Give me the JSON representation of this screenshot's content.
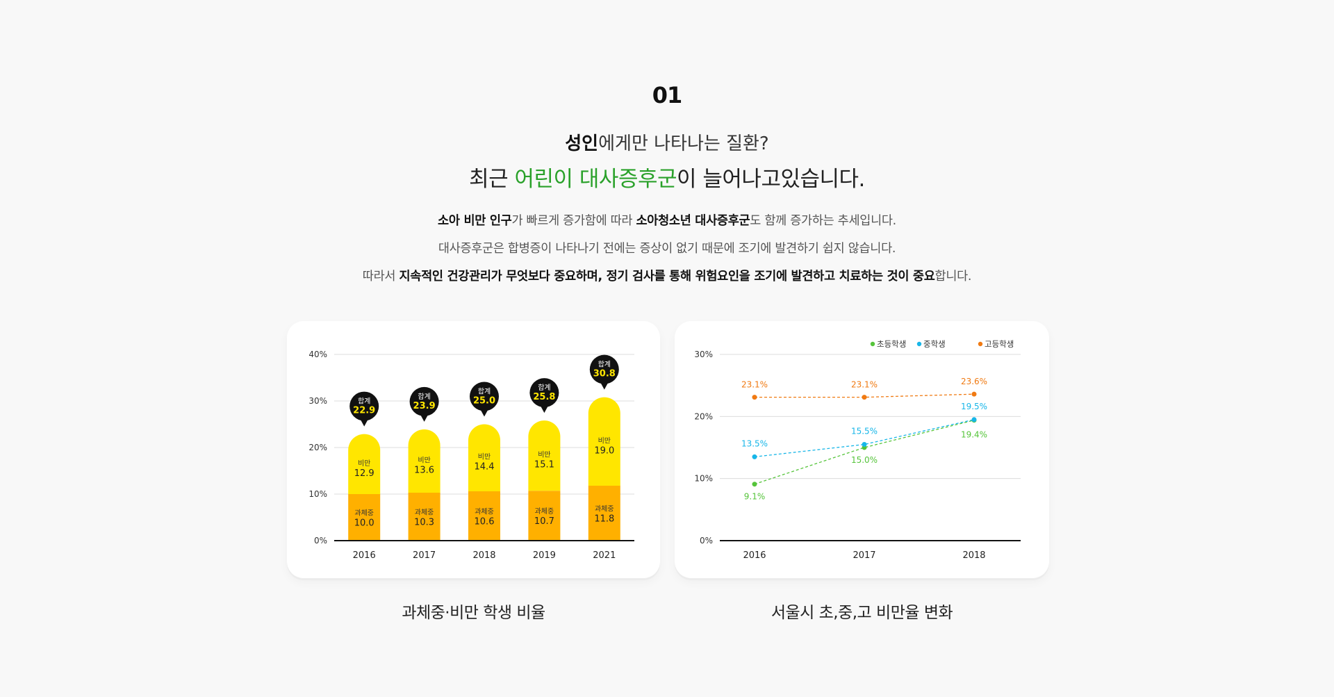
{
  "section_number": "01",
  "heading": {
    "line1_bold": "성인",
    "line1_rest": "에게만 나타나는 질환?",
    "line2_pre": "최근 ",
    "line2_highlight": "어린이 대사증후군",
    "line2_post": "이 늘어나고있습니다."
  },
  "description": {
    "p1": {
      "b1": "소아 비만 인구",
      "t1": "가 빠르게 증가함에 따라 ",
      "b2": "소아청소년 대사증후군",
      "t2": "도 함께 증가하는 추세입니다."
    },
    "p2": "대사증후군은 합병증이 나타나기 전에는 증상이 없기 때문에 조기에 발견하기 쉽지 않습니다.",
    "p3": {
      "t1": "따라서 ",
      "b1": "지속적인 건강관리가 무엇보다 중요하며, 정기 검사를 통해 위험요인을 조기에 발견하고 치료하는 것이 중요",
      "t2": "합니다."
    }
  },
  "colors": {
    "accent_green": "#2aa12a",
    "obese": "#ffe600",
    "overweight": "#ffb000",
    "elementary": "#55c43a",
    "middle": "#17b6e8",
    "high": "#f07a12"
  },
  "captions": {
    "bar": "과체중·비만 학생 비율",
    "line": "서울시 초,중,고 비만율 변화"
  },
  "chart_data": [
    {
      "type": "bar",
      "stacked": true,
      "title": "과체중·비만 학생 비율",
      "categories": [
        "2016",
        "2017",
        "2018",
        "2019",
        "2021"
      ],
      "series": [
        {
          "name": "과체중",
          "values": [
            10.0,
            10.3,
            10.6,
            10.7,
            11.8
          ]
        },
        {
          "name": "비만",
          "values": [
            12.9,
            13.6,
            14.4,
            15.1,
            19.0
          ]
        }
      ],
      "totals_label": "합계",
      "totals": [
        22.9,
        23.9,
        25.0,
        25.8,
        30.8
      ],
      "yticks": [
        "0%",
        "10%",
        "20%",
        "30%",
        "40%"
      ],
      "ylim": [
        0,
        40
      ],
      "grid": true
    },
    {
      "type": "line",
      "title": "서울시 초,중,고 비만율 변화",
      "x": [
        "2016",
        "2017",
        "2018"
      ],
      "series": [
        {
          "name": "초등학생",
          "values": [
            9.1,
            15.0,
            19.4
          ],
          "labels": [
            "9.1%",
            "15.0%",
            "19.4%"
          ]
        },
        {
          "name": "중학생",
          "values": [
            13.5,
            15.5,
            19.5
          ],
          "labels": [
            "13.5%",
            "15.5%",
            "19.5%"
          ]
        },
        {
          "name": "고등학생",
          "values": [
            23.1,
            23.1,
            23.6
          ],
          "labels": [
            "23.1%",
            "23.1%",
            "23.6%"
          ]
        }
      ],
      "yticks": [
        "0%",
        "10%",
        "20%",
        "30%"
      ],
      "ylim": [
        0,
        30
      ],
      "legend": "top-right",
      "grid": true
    }
  ]
}
